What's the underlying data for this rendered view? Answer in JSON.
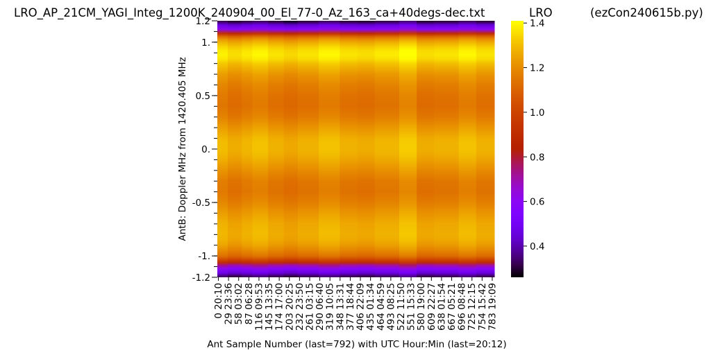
{
  "chart_data": {
    "type": "heatmap",
    "title": "LRO_AP_21CM_YAGI_Integ_1200K_240904_00_El_77-0_Az_163_ca+40degs-dec.txt",
    "title_right_1": "LRO",
    "title_right_2": "(ezCon240615b.py)",
    "xlabel": "Ant Sample Number (last=792) with UTC Hour:Min (last=20:12)",
    "ylabel": "AntB:  Doppler MHz from 1420.405 MHz",
    "xlim": [
      0,
      792
    ],
    "ylim": [
      -1.2,
      1.2
    ],
    "x_ticks": [
      {
        "value": 0,
        "label": "0  20:10"
      },
      {
        "value": 29,
        "label": "29  23:36"
      },
      {
        "value": 58,
        "label": "58  03:02"
      },
      {
        "value": 87,
        "label": "87  06:28"
      },
      {
        "value": 116,
        "label": "116  09:53"
      },
      {
        "value": 145,
        "label": "145  13:35"
      },
      {
        "value": 174,
        "label": "174  17:00"
      },
      {
        "value": 203,
        "label": "203  20:25"
      },
      {
        "value": 232,
        "label": "232  23:50"
      },
      {
        "value": 261,
        "label": "261  03:15"
      },
      {
        "value": 290,
        "label": "290  06:40"
      },
      {
        "value": 319,
        "label": "319  10:05"
      },
      {
        "value": 348,
        "label": "348  13:31"
      },
      {
        "value": 377,
        "label": "377  18:44"
      },
      {
        "value": 406,
        "label": "406  22:09"
      },
      {
        "value": 435,
        "label": "435  01:34"
      },
      {
        "value": 464,
        "label": "464  04:59"
      },
      {
        "value": 493,
        "label": "493  08:25"
      },
      {
        "value": 522,
        "label": "522  11:50"
      },
      {
        "value": 551,
        "label": "551  15:33"
      },
      {
        "value": 580,
        "label": "580  19:00"
      },
      {
        "value": 609,
        "label": "609  22:27"
      },
      {
        "value": 638,
        "label": "638  01:54"
      },
      {
        "value": 667,
        "label": "667  05:21"
      },
      {
        "value": 696,
        "label": "696  08:48"
      },
      {
        "value": 725,
        "label": "725  12:15"
      },
      {
        "value": 754,
        "label": "754  15:42"
      },
      {
        "value": 783,
        "label": "783  19:09"
      }
    ],
    "y_ticks": [
      {
        "value": 1.2,
        "label": "1.2"
      },
      {
        "value": 1.0,
        "label": "1."
      },
      {
        "value": 0.5,
        "label": "0.5"
      },
      {
        "value": 0.0,
        "label": "0."
      },
      {
        "value": -0.5,
        "label": "-0.5"
      },
      {
        "value": -1.0,
        "label": "-1."
      },
      {
        "value": -1.2,
        "label": "-1.2"
      }
    ],
    "colorbar": {
      "colormap": "gnuplot",
      "vmin": 0.26,
      "vmax": 1.41,
      "ticks": [
        {
          "value": 0.4,
          "label": "0.4"
        },
        {
          "value": 0.6,
          "label": "0.6"
        },
        {
          "value": 0.8,
          "label": "0.8"
        },
        {
          "value": 1.0,
          "label": "1.0"
        },
        {
          "value": 1.2,
          "label": "1.2"
        },
        {
          "value": 1.4,
          "label": "1.4"
        }
      ]
    },
    "profile": {
      "doppler_mhz": [
        1.2,
        1.16,
        1.12,
        1.08,
        1.05,
        1.02,
        1.0,
        0.96,
        0.92,
        0.88,
        0.84,
        0.8,
        0.7,
        0.6,
        0.5,
        0.4,
        0.3,
        0.2,
        0.1,
        0.05,
        0.0,
        -0.05,
        -0.1,
        -0.2,
        -0.3,
        -0.4,
        -0.5,
        -0.6,
        -0.7,
        -0.8,
        -0.85,
        -0.9,
        -0.95,
        -1.0,
        -1.03,
        -1.06,
        -1.09,
        -1.12,
        -1.16,
        -1.2
      ],
      "value": [
        0.28,
        0.45,
        0.6,
        0.9,
        1.12,
        1.22,
        1.26,
        1.32,
        1.36,
        1.37,
        1.35,
        1.3,
        1.22,
        1.17,
        1.14,
        1.13,
        1.16,
        1.22,
        1.27,
        1.28,
        1.28,
        1.27,
        1.25,
        1.2,
        1.15,
        1.14,
        1.17,
        1.22,
        1.26,
        1.27,
        1.26,
        1.23,
        1.18,
        1.12,
        1.02,
        0.9,
        0.7,
        0.58,
        0.45,
        0.3
      ]
    },
    "column_variation": [
      {
        "from": 0,
        "to": 30,
        "delta": 0.02
      },
      {
        "from": 30,
        "to": 70,
        "delta": -0.01
      },
      {
        "from": 70,
        "to": 100,
        "delta": 0.01
      },
      {
        "from": 100,
        "to": 145,
        "delta": 0.03
      },
      {
        "from": 145,
        "to": 190,
        "delta": 0.0
      },
      {
        "from": 190,
        "to": 230,
        "delta": -0.02
      },
      {
        "from": 230,
        "to": 290,
        "delta": 0.0
      },
      {
        "from": 290,
        "to": 350,
        "delta": 0.03
      },
      {
        "from": 350,
        "to": 400,
        "delta": 0.0
      },
      {
        "from": 400,
        "to": 450,
        "delta": -0.01
      },
      {
        "from": 450,
        "to": 520,
        "delta": 0.01
      },
      {
        "from": 520,
        "to": 570,
        "delta": 0.05
      },
      {
        "from": 570,
        "to": 620,
        "delta": -0.01
      },
      {
        "from": 620,
        "to": 690,
        "delta": 0.0
      },
      {
        "from": 690,
        "to": 740,
        "delta": 0.03
      },
      {
        "from": 740,
        "to": 792,
        "delta": 0.0
      }
    ]
  }
}
